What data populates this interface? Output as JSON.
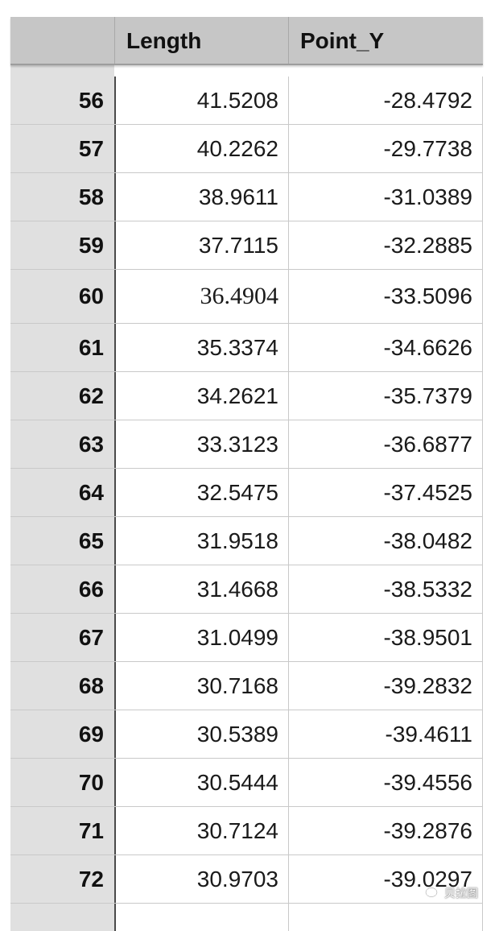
{
  "table": {
    "columns": [
      "",
      "Length",
      "Point_Y"
    ],
    "rows": [
      {
        "index": "56",
        "length": "41.5208",
        "point_y": "-28.4792"
      },
      {
        "index": "57",
        "length": "40.2262",
        "point_y": "-29.7738"
      },
      {
        "index": "58",
        "length": "38.9611",
        "point_y": "-31.0389"
      },
      {
        "index": "59",
        "length": "37.7115",
        "point_y": "-32.2885"
      },
      {
        "index": "60",
        "length": "36.4904",
        "point_y": "-33.5096"
      },
      {
        "index": "61",
        "length": "35.3374",
        "point_y": "-34.6626"
      },
      {
        "index": "62",
        "length": "34.2621",
        "point_y": "-35.7379"
      },
      {
        "index": "63",
        "length": "33.3123",
        "point_y": "-36.6877"
      },
      {
        "index": "64",
        "length": "32.5475",
        "point_y": "-37.4525"
      },
      {
        "index": "65",
        "length": "31.9518",
        "point_y": "-38.0482"
      },
      {
        "index": "66",
        "length": "31.4668",
        "point_y": "-38.5332"
      },
      {
        "index": "67",
        "length": "31.0499",
        "point_y": "-38.9501"
      },
      {
        "index": "68",
        "length": "30.7168",
        "point_y": "-39.2832"
      },
      {
        "index": "69",
        "length": "30.5389",
        "point_y": "-39.4611"
      },
      {
        "index": "70",
        "length": "30.5444",
        "point_y": "-39.4556"
      },
      {
        "index": "71",
        "length": "30.7124",
        "point_y": "-39.2876"
      },
      {
        "index": "72",
        "length": "30.9703",
        "point_y": "-39.0297"
      }
    ]
  },
  "watermark": {
    "text": "贝拉图",
    "icon": "wechat-icon"
  },
  "colors": {
    "header_bg": "#c6c6c6",
    "index_bg": "#e0e0e0",
    "grid_line": "#c9c9c9"
  }
}
